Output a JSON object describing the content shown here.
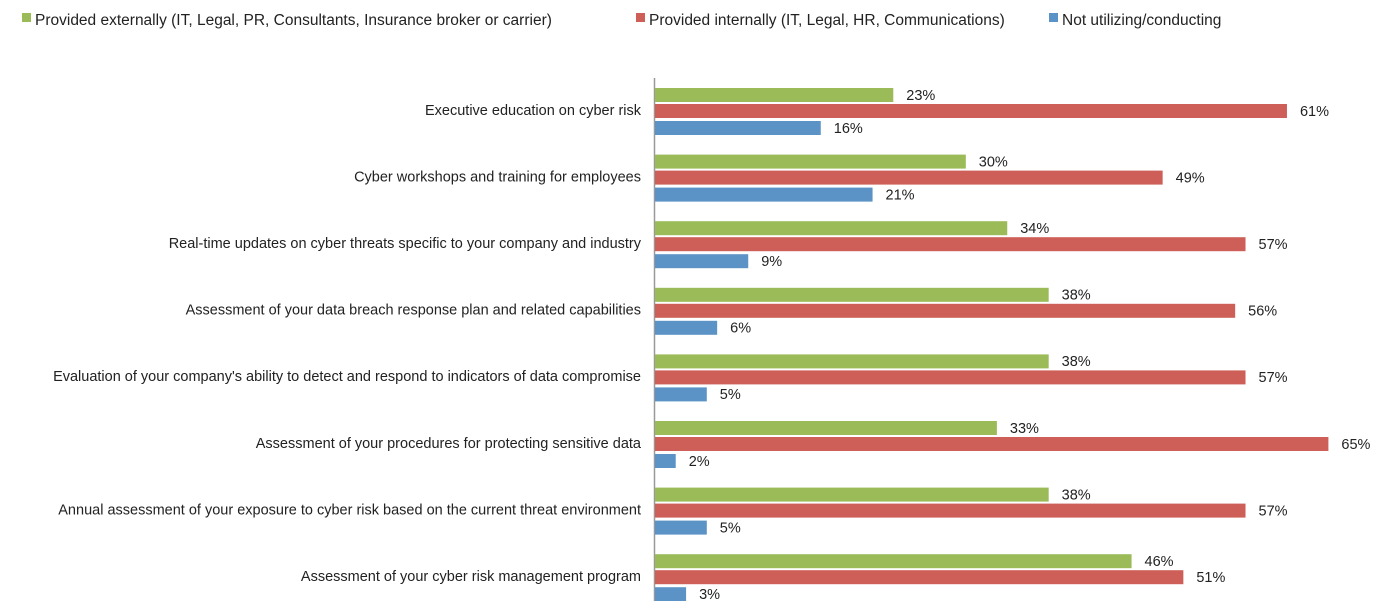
{
  "chart_data": {
    "type": "hbar",
    "categories": [
      "Executive education on cyber risk",
      "Cyber workshops and training for employees",
      "Real-time updates on cyber threats specific to your company and industry",
      "Assessment of your data breach response plan and related capabilities",
      "Evaluation of your company's ability to detect and respond to indicators of data compromise",
      "Assessment of your procedures for protecting sensitive data",
      "Annual assessment of your exposure to cyber risk based on the current threat environment",
      "Assessment of your cyber risk management program"
    ],
    "series": [
      {
        "name": "Provided externally (IT, Legal, PR, Consultants, Insurance broker or carrier)",
        "color": "#9bbb59",
        "values": [
          23,
          30,
          34,
          38,
          38,
          33,
          38,
          46
        ],
        "value_labels": [
          "23%",
          "30%",
          "34%",
          "38%",
          "38%",
          "33%",
          "38%",
          "46%"
        ]
      },
      {
        "name": "Provided internally (IT, Legal, HR, Communications)",
        "color": "#cd5f58",
        "values": [
          61,
          49,
          57,
          56,
          57,
          65,
          57,
          51
        ],
        "value_labels": [
          "61%",
          "49%",
          "57%",
          "56%",
          "57%",
          "65%",
          "57%",
          "51%"
        ]
      },
      {
        "name": "Not utilizing/conducting",
        "color": "#5b93c7",
        "values": [
          16,
          21,
          9,
          6,
          5,
          2,
          5,
          3
        ],
        "value_labels": [
          "16%",
          "21%",
          "9%",
          "6%",
          "5%",
          "2%",
          "5%",
          "3%"
        ]
      }
    ],
    "xlim": [
      0,
      70
    ],
    "legend": "top"
  }
}
